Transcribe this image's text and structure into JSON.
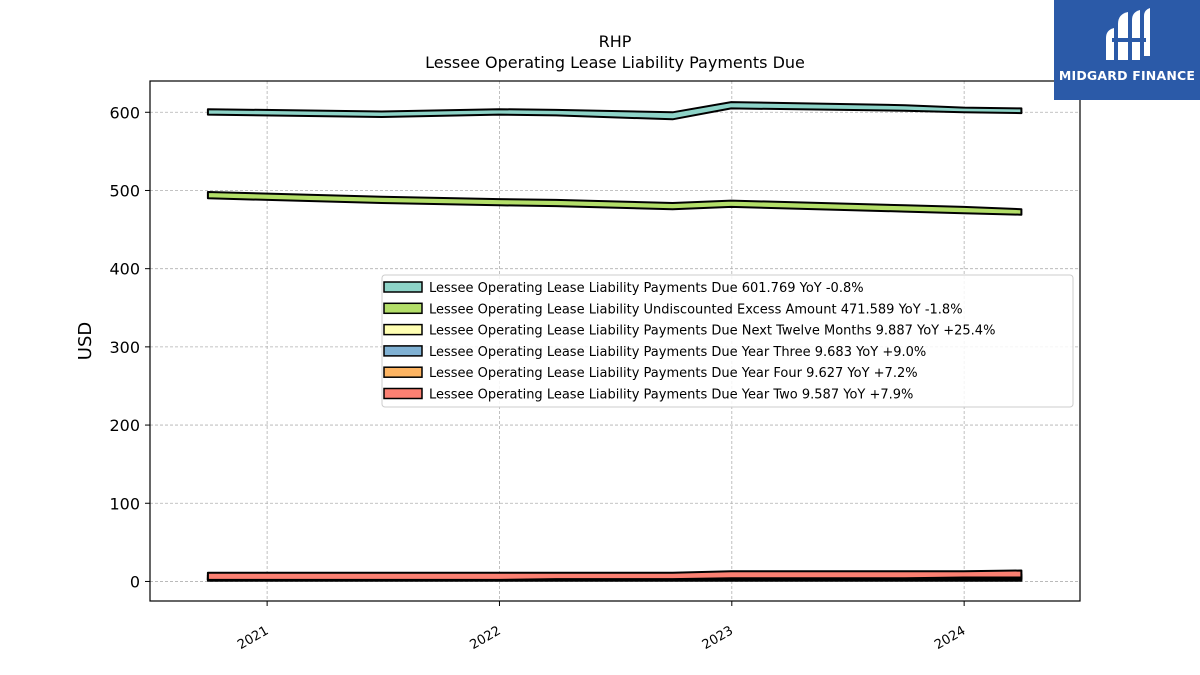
{
  "chart_data": {
    "type": "area",
    "title": "RHP",
    "subtitle": "Lessee Operating Lease Liability Payments Due",
    "xlabel": "",
    "ylabel": "USD",
    "x_ticks": [
      "2021",
      "2022",
      "2023",
      "2024"
    ],
    "x_range": [
      "2020-07-01",
      "2024-07-01"
    ],
    "ylim": [
      -25,
      640
    ],
    "y_ticks": [
      0,
      100,
      200,
      300,
      400,
      500,
      600
    ],
    "grid": true,
    "legend_position": "center-right",
    "x": [
      "2020-09-30",
      "2021-06-30",
      "2021-12-31",
      "2022-03-31",
      "2022-09-30",
      "2022-12-31",
      "2023-09-30",
      "2023-12-31",
      "2024-03-31"
    ],
    "series": [
      {
        "name": "Lessee Operating Lease Liability Payments Due",
        "label": "Lessee Operating Lease Liability Payments Due  601.769 YoY -0.8%",
        "color": "#8dd3c7",
        "low": [
          597,
          594,
          597,
          596,
          591,
          605,
          602,
          600,
          599
        ],
        "high": [
          604,
          601,
          604,
          603,
          600,
          613,
          609,
          606,
          605
        ]
      },
      {
        "name": "Lessee Operating Lease Liability Undiscounted Excess Amount",
        "label": "Lessee Operating Lease Liability Undiscounted Excess Amount  471.589 YoY -1.8%",
        "color": "#b3de69",
        "low": [
          490,
          484,
          481,
          480,
          476,
          479,
          473,
          471,
          469
        ],
        "high": [
          498,
          492,
          489,
          488,
          484,
          487,
          481,
          479,
          476
        ]
      },
      {
        "name": "Lessee Operating Lease Liability Payments Due Next Twelve Months",
        "label": "Lessee Operating Lease Liability Payments Due Next Twelve Months  9.887 YoY +25.4%",
        "color": "#ffffb3",
        "low": [
          1,
          1,
          1,
          1,
          1,
          1,
          1,
          1,
          1
        ],
        "high": [
          3,
          3,
          3,
          3,
          3,
          4,
          4,
          4,
          4
        ]
      },
      {
        "name": "Lessee Operating Lease Liability Payments Due Year Three",
        "label": "Lessee Operating Lease Liability Payments Due Year Three  9.683 YoY +9.0%",
        "color": "#80b1d3",
        "low": [
          2,
          2,
          2,
          2,
          2,
          3,
          3,
          3,
          3
        ],
        "high": [
          5,
          5,
          5,
          5,
          5,
          6,
          6,
          6,
          6
        ]
      },
      {
        "name": "Lessee Operating Lease Liability Payments Due Year Four",
        "label": "Lessee Operating Lease Liability Payments Due Year Four  9.627 YoY +7.2%",
        "color": "#fdb462",
        "low": [
          3,
          3,
          3,
          3,
          3,
          4,
          4,
          4,
          4
        ],
        "high": [
          8,
          8,
          8,
          8,
          8,
          9,
          9,
          9,
          9
        ]
      },
      {
        "name": "Lessee Operating Lease Liability Payments Due Year Two",
        "label": "Lessee Operating Lease Liability Payments Due Year Two  9.587 YoY +7.9%",
        "color": "#fb8072",
        "low": [
          2,
          2,
          2,
          3,
          3,
          4,
          4,
          5,
          5
        ],
        "high": [
          11,
          11,
          11,
          11,
          11,
          13,
          13,
          13,
          14
        ]
      }
    ]
  },
  "logo": {
    "text": "MIDGARD FINANCE",
    "background": "#2b5aa8",
    "icon": "midgard-logo-icon"
  }
}
